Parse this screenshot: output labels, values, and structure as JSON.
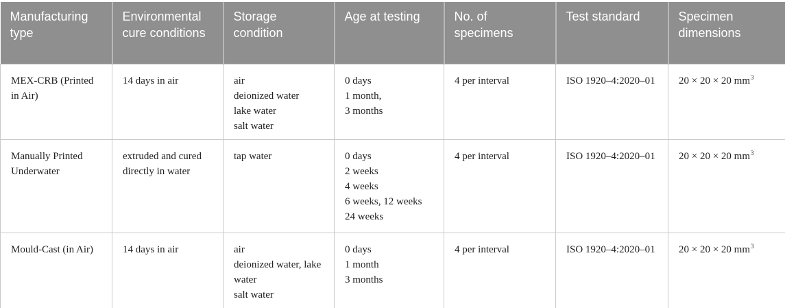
{
  "colors": {
    "header_bg": "#8f8f8f",
    "header_text": "#ffffff",
    "header_divider": "#b8b8b8",
    "border": "#c9c9c9",
    "body_text": "#1f1f1f"
  },
  "header": {
    "columns": [
      {
        "key": "manufacturing-type",
        "label": "Manufacturing type"
      },
      {
        "key": "cure-conditions",
        "label": "Environmental cure conditions"
      },
      {
        "key": "storage-condition",
        "label": "Storage condition"
      },
      {
        "key": "age-at-testing",
        "label": "Age at testing"
      },
      {
        "key": "num-specimens",
        "label": "No. of specimens"
      },
      {
        "key": "test-standard",
        "label": "Test standard"
      },
      {
        "key": "specimen-dimensions",
        "label": "Specimen dimensions"
      }
    ]
  },
  "rows": [
    {
      "cells": [
        {
          "lines": [
            "MEX-CRB (Printed",
            "in Air)"
          ]
        },
        {
          "lines": [
            "14 days in air"
          ]
        },
        {
          "lines": [
            "air",
            "deionized water",
            "lake water",
            "salt water"
          ]
        },
        {
          "lines": [
            "0 days",
            "1 month,",
            "3 months"
          ]
        },
        {
          "lines": [
            "4 per interval"
          ]
        },
        {
          "lines": [
            "ISO 1920–4:2020–01"
          ]
        },
        {
          "lines": [
            {
              "text": "20 × 20 × 20 mm",
              "sup": "3"
            }
          ]
        }
      ]
    },
    {
      "cells": [
        {
          "lines": [
            "Manually Printed",
            "Underwater"
          ]
        },
        {
          "lines": [
            "extruded and cured",
            "directly in water"
          ]
        },
        {
          "lines": [
            "tap water"
          ]
        },
        {
          "lines": [
            "0 days",
            "2 weeks",
            "4 weeks",
            "6 weeks, 12 weeks",
            "24 weeks"
          ]
        },
        {
          "lines": [
            "4 per interval"
          ]
        },
        {
          "lines": [
            "ISO 1920–4:2020–01"
          ]
        },
        {
          "lines": [
            {
              "text": "20 × 20 × 20 mm",
              "sup": "3"
            }
          ]
        }
      ]
    },
    {
      "cells": [
        {
          "lines": [
            "Mould-Cast (in Air)"
          ]
        },
        {
          "lines": [
            "14 days in air"
          ]
        },
        {
          "lines": [
            "air",
            "deionized water, lake",
            "water",
            "salt water"
          ]
        },
        {
          "lines": [
            "0 days",
            "1 month",
            "3 months"
          ]
        },
        {
          "lines": [
            "4 per interval"
          ]
        },
        {
          "lines": [
            "ISO 1920–4:2020–01"
          ]
        },
        {
          "lines": [
            {
              "text": "20 × 20 × 20 mm",
              "sup": "3"
            }
          ]
        }
      ]
    }
  ]
}
